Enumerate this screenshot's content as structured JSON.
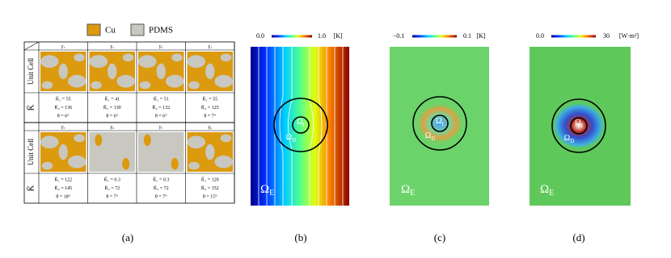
{
  "legend": [
    "Cu",
    "PDMS"
  ],
  "table": {
    "groups": [
      {
        "headers": [
          "γ₁",
          "γ₂",
          "γ₃",
          "γ₄"
        ],
        "row_labels": [
          "Unit Cell",
          "K̄"
        ],
        "cells": [
          [
            "K̄₁ = 55",
            "K̄₂ = 136",
            "θ = 6°"
          ],
          [
            "K̄₁ = 41",
            "K̄₂ = 130",
            "θ = 6°"
          ],
          [
            "K̄₁ = 51",
            "K̄₂ = 132",
            "θ = 6°"
          ],
          [
            "K̄₁ = 55",
            "K̄₂ = 125",
            "θ = 7°"
          ]
        ]
      },
      {
        "headers": [
          "γ₅",
          "γ₆",
          "γ₇",
          "γ₈"
        ],
        "row_labels": [
          "Unit Cell",
          "K̄"
        ],
        "cells": [
          [
            "K̄₁ = 122",
            "K̄₂ = 145",
            "θ = 18°"
          ],
          [
            "K̄₁ = 0.3",
            "K̄₂ = 72",
            "θ = 7°"
          ],
          [
            "K̄₁ = 0.3",
            "K̄₂ = 72",
            "θ = 7°"
          ],
          [
            "K̄₁ = 120",
            "K̄₂ = 152",
            "θ = 15°"
          ]
        ]
      }
    ]
  },
  "panels": [
    {
      "colorbar": {
        "min": "0.0",
        "max": "1.0",
        "unit": "[K]"
      },
      "labels": [
        {
          "symbol": "Ω",
          "sub": "I"
        },
        {
          "symbol": "Ω",
          "sub": "D"
        },
        {
          "symbol": "Ω",
          "sub": "E"
        }
      ]
    },
    {
      "colorbar": {
        "min": "−0.1",
        "max": "0.1",
        "unit": "[K]"
      },
      "labels": [
        {
          "symbol": "Ω",
          "sub": "I"
        },
        {
          "symbol": "Ω",
          "sub": "D"
        },
        {
          "symbol": "Ω",
          "sub": "E"
        }
      ]
    },
    {
      "colorbar": {
        "min": "0.0",
        "max": "30",
        "unit": "[W·m²]"
      },
      "labels": [
        {
          "symbol": "Ω",
          "sub": "I"
        },
        {
          "symbol": "Ω",
          "sub": "D"
        },
        {
          "symbol": "Ω",
          "sub": "E"
        }
      ]
    }
  ],
  "captions": [
    "(a)",
    "(b)",
    "(c)",
    "(d)"
  ]
}
